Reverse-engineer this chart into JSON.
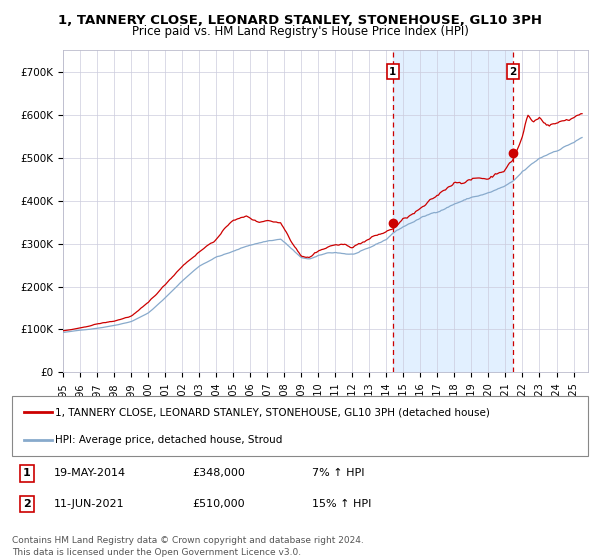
{
  "title_line1": "1, TANNERY CLOSE, LEONARD STANLEY, STONEHOUSE, GL10 3PH",
  "title_line2": "Price paid vs. HM Land Registry's House Price Index (HPI)",
  "legend_red": "1, TANNERY CLOSE, LEONARD STANLEY, STONEHOUSE, GL10 3PH (detached house)",
  "legend_blue": "HPI: Average price, detached house, Stroud",
  "annotation1_label": "1",
  "annotation1_date": "19-MAY-2014",
  "annotation1_price": "£348,000",
  "annotation1_hpi": "7% ↑ HPI",
  "annotation2_label": "2",
  "annotation2_date": "11-JUN-2021",
  "annotation2_price": "£510,000",
  "annotation2_hpi": "15% ↑ HPI",
  "footnote1": "Contains HM Land Registry data © Crown copyright and database right 2024.",
  "footnote2": "This data is licensed under the Open Government Licence v3.0.",
  "ylim": [
    0,
    750000
  ],
  "yticks": [
    0,
    100000,
    200000,
    300000,
    400000,
    500000,
    600000,
    700000
  ],
  "ytick_labels": [
    "£0",
    "£100K",
    "£200K",
    "£300K",
    "£400K",
    "£500K",
    "£600K",
    "£700K"
  ],
  "sale1_date_num": 2014.38,
  "sale1_value": 348000,
  "sale2_date_num": 2021.44,
  "sale2_value": 510000,
  "red_color": "#cc0000",
  "blue_color": "#88aacc",
  "bg_color": "#ffffff",
  "grid_color": "#ccccdd",
  "shade_color": "#ddeeff",
  "title_fontsize": 9.5,
  "subtitle_fontsize": 8.5,
  "tick_fontsize": 7.5,
  "legend_fontsize": 7.5,
  "table_fontsize": 8.0,
  "footnote_fontsize": 6.5
}
